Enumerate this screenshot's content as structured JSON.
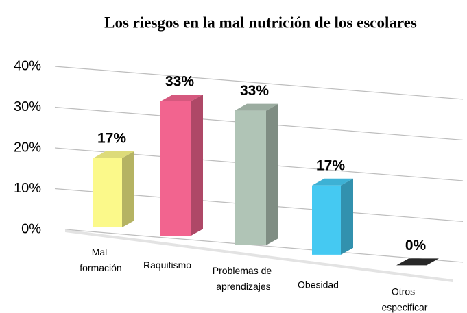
{
  "chart_data": {
    "type": "bar3d",
    "title": "Los riesgos en la mal nutrición de los escolares",
    "categories": [
      "Mal formación",
      "Raquitismo",
      "Problemas de aprendizajes",
      "Obesidad",
      "Otros especificar"
    ],
    "values": [
      17,
      33,
      33,
      17,
      0
    ],
    "value_labels": [
      "17%",
      "33%",
      "33%",
      "17%",
      "0%"
    ],
    "colors": [
      "#fbf98a",
      "#f2648f",
      "#b0c4b6",
      "#45c9f2",
      "#2e2e2e"
    ],
    "ylim": [
      0,
      40
    ],
    "yticks": [
      {
        "value": 0,
        "label": "0%"
      },
      {
        "value": 10,
        "label": "10%"
      },
      {
        "value": 20,
        "label": "20%"
      },
      {
        "value": 30,
        "label": "30%"
      },
      {
        "value": 40,
        "label": "40%"
      }
    ],
    "grid": true
  }
}
